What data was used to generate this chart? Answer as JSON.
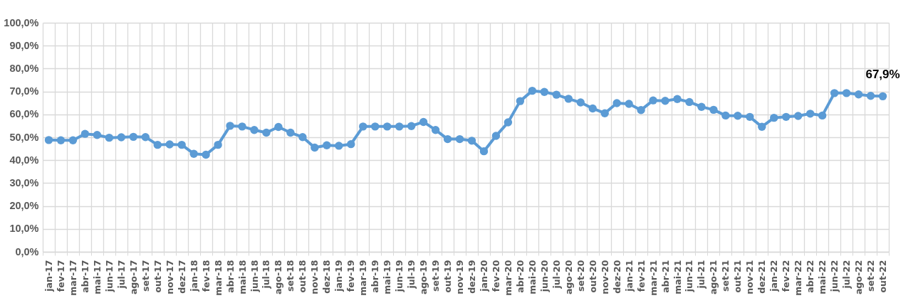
{
  "chart_data": {
    "type": "line",
    "categories": [
      "jan-17",
      "fev-17",
      "mar-17",
      "abr-17",
      "mai-17",
      "jun-17",
      "jul-17",
      "ago-17",
      "set-17",
      "out-17",
      "nov-17",
      "dez-17",
      "jan-18",
      "fev-18",
      "mar-18",
      "abr-18",
      "mai-18",
      "jun-18",
      "jul-18",
      "ago-18",
      "set-18",
      "out-18",
      "nov-18",
      "dez-18",
      "jan-19",
      "fev-19",
      "mar-19",
      "abr-19",
      "mai-19",
      "jun-19",
      "jul-19",
      "ago-19",
      "set-19",
      "out-19",
      "nov-19",
      "dez-19",
      "jan-20",
      "fev-20",
      "mar-20",
      "abr-20",
      "mai-20",
      "jun-20",
      "jul-20",
      "ago-20",
      "set-20",
      "out-20",
      "nov-20",
      "dez-20",
      "jan-21",
      "fev-21",
      "mar-21",
      "abr-21",
      "mai-21",
      "jun-21",
      "jul-21",
      "ago-21",
      "set-21",
      "out-21",
      "nov-21",
      "dez-21",
      "jan-22",
      "fev-22",
      "mar-22",
      "abr-22",
      "mai-22",
      "jun-22",
      "jul-22",
      "ago-22",
      "set-22",
      "out-22"
    ],
    "series": [
      {
        "color": "#5b9bd5",
        "values": [
          48.8,
          48.7,
          48.7,
          51.5,
          51.0,
          49.8,
          50.0,
          50.2,
          50.1,
          46.7,
          46.9,
          46.7,
          42.8,
          42.4,
          46.7,
          55.0,
          54.7,
          53.2,
          52.0,
          54.5,
          52.0,
          50.1,
          45.5,
          46.5,
          46.3,
          47.0,
          54.7,
          54.7,
          54.7,
          54.7,
          54.9,
          56.7,
          53.2,
          49.2,
          49.2,
          48.5,
          43.9,
          50.6,
          56.5,
          65.8,
          70.3,
          69.8,
          68.6,
          66.8,
          65.2,
          62.6,
          60.5,
          64.9,
          64.6,
          61.9,
          66.1,
          65.9,
          66.7,
          65.4,
          63.3,
          62.0,
          59.5,
          59.4,
          58.9,
          54.6,
          58.5,
          58.9,
          59.3,
          60.3,
          59.5,
          69.3,
          69.3,
          68.7,
          68.1,
          67.9
        ],
        "value_labels": [
          null,
          null,
          null,
          null,
          null,
          null,
          null,
          null,
          null,
          null,
          null,
          null,
          null,
          null,
          null,
          null,
          null,
          null,
          null,
          null,
          null,
          null,
          null,
          null,
          null,
          null,
          null,
          null,
          null,
          null,
          null,
          null,
          null,
          null,
          null,
          null,
          null,
          null,
          null,
          null,
          null,
          null,
          null,
          null,
          null,
          null,
          null,
          null,
          null,
          null,
          null,
          null,
          null,
          null,
          null,
          null,
          null,
          null,
          null,
          null,
          null,
          null,
          null,
          null,
          null,
          null,
          null,
          null,
          null,
          "67,9%"
        ]
      }
    ],
    "ylim": [
      0,
      100
    ],
    "yticks": [
      {
        "value": 0,
        "label": "0,0%"
      },
      {
        "value": 10,
        "label": "10,0%"
      },
      {
        "value": 20,
        "label": "20,0%"
      },
      {
        "value": 30,
        "label": "30,0%"
      },
      {
        "value": 40,
        "label": "40,0%"
      },
      {
        "value": 50,
        "label": "50,0%"
      },
      {
        "value": 60,
        "label": "60,0%"
      },
      {
        "value": 70,
        "label": "70,0%"
      },
      {
        "value": 80,
        "label": "80,0%"
      },
      {
        "value": 90,
        "label": "90,0%"
      },
      {
        "value": 100,
        "label": "100,0%"
      }
    ],
    "grid": true,
    "marker": "circle",
    "line_style": "solid"
  }
}
